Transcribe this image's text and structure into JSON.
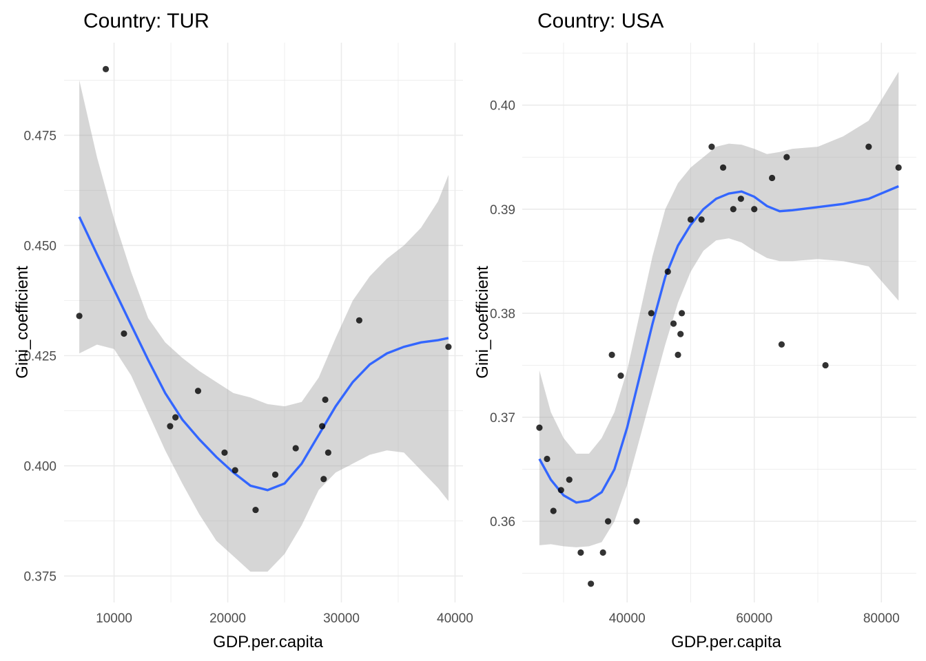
{
  "chart_data": [
    {
      "type": "scatter",
      "title": "Country: TUR",
      "xlabel": "GDP.per.capita",
      "ylabel": "Gini_coefficient",
      "xlim": [
        5600,
        40700
      ],
      "ylim": [
        0.369,
        0.496
      ],
      "xticks": [
        10000,
        20000,
        30000,
        40000
      ],
      "xtick_labels": [
        "10000",
        "20000",
        "30000",
        "40000"
      ],
      "yticks": [
        0.375,
        0.4,
        0.425,
        0.45,
        0.475
      ],
      "ytick_labels": [
        "0.375",
        "0.400",
        "0.425",
        "0.450",
        "0.475"
      ],
      "grid": true,
      "legend": "none",
      "points": [
        {
          "x": 6940,
          "y": 0.434
        },
        {
          "x": 9270,
          "y": 0.49
        },
        {
          "x": 10870,
          "y": 0.43
        },
        {
          "x": 14930,
          "y": 0.409
        },
        {
          "x": 15400,
          "y": 0.411
        },
        {
          "x": 17390,
          "y": 0.417
        },
        {
          "x": 19720,
          "y": 0.403
        },
        {
          "x": 20650,
          "y": 0.399
        },
        {
          "x": 22450,
          "y": 0.39
        },
        {
          "x": 24180,
          "y": 0.398
        },
        {
          "x": 25980,
          "y": 0.404
        },
        {
          "x": 28310,
          "y": 0.409
        },
        {
          "x": 28580,
          "y": 0.415
        },
        {
          "x": 28440,
          "y": 0.397
        },
        {
          "x": 28840,
          "y": 0.403
        },
        {
          "x": 31570,
          "y": 0.433
        },
        {
          "x": 39420,
          "y": 0.427
        }
      ],
      "smooth": {
        "method": "loess",
        "color": "#3366ff",
        "x": [
          6940,
          8500,
          10000,
          11500,
          13000,
          14500,
          16000,
          17500,
          19000,
          20500,
          22000,
          23500,
          25000,
          26500,
          28000,
          29500,
          31000,
          32500,
          34000,
          35500,
          37000,
          38500,
          39420
        ],
        "y": [
          0.4565,
          0.448,
          0.44,
          0.432,
          0.424,
          0.4165,
          0.4105,
          0.406,
          0.402,
          0.3985,
          0.3955,
          0.3945,
          0.396,
          0.4005,
          0.407,
          0.4135,
          0.419,
          0.423,
          0.4255,
          0.427,
          0.428,
          0.4285,
          0.429
        ],
        "lower": [
          0.4255,
          0.4275,
          0.4265,
          0.4205,
          0.412,
          0.4035,
          0.396,
          0.389,
          0.383,
          0.3795,
          0.376,
          0.376,
          0.38,
          0.3865,
          0.3945,
          0.3985,
          0.4005,
          0.4025,
          0.4035,
          0.403,
          0.399,
          0.395,
          0.392
        ],
        "upper": [
          0.4875,
          0.47,
          0.456,
          0.444,
          0.4335,
          0.428,
          0.4245,
          0.4215,
          0.419,
          0.4165,
          0.4155,
          0.414,
          0.4135,
          0.4145,
          0.42,
          0.429,
          0.4375,
          0.443,
          0.447,
          0.45,
          0.454,
          0.46,
          0.466
        ]
      }
    },
    {
      "type": "scatter",
      "title": "Country: USA",
      "xlabel": "GDP.per.capita",
      "ylabel": "Gini_coefficient",
      "xlim": [
        23500,
        85500
      ],
      "ylim": [
        0.3522,
        0.406
      ],
      "xticks": [
        40000,
        60000,
        80000
      ],
      "xtick_labels": [
        "40000",
        "60000",
        "80000"
      ],
      "yticks": [
        0.36,
        0.37,
        0.38,
        0.39,
        0.4
      ],
      "ytick_labels": [
        "0.36",
        "0.37",
        "0.38",
        "0.39",
        "0.40"
      ],
      "grid": true,
      "legend": "none",
      "points": [
        {
          "x": 26200,
          "y": 0.369
        },
        {
          "x": 27400,
          "y": 0.366
        },
        {
          "x": 28400,
          "y": 0.361
        },
        {
          "x": 29600,
          "y": 0.363
        },
        {
          "x": 30900,
          "y": 0.364
        },
        {
          "x": 32700,
          "y": 0.357
        },
        {
          "x": 34300,
          "y": 0.354
        },
        {
          "x": 36200,
          "y": 0.357
        },
        {
          "x": 37000,
          "y": 0.36
        },
        {
          "x": 37600,
          "y": 0.376
        },
        {
          "x": 39000,
          "y": 0.374
        },
        {
          "x": 41500,
          "y": 0.36
        },
        {
          "x": 43800,
          "y": 0.38
        },
        {
          "x": 46400,
          "y": 0.384
        },
        {
          "x": 47300,
          "y": 0.379
        },
        {
          "x": 48000,
          "y": 0.376
        },
        {
          "x": 48400,
          "y": 0.378
        },
        {
          "x": 48600,
          "y": 0.38
        },
        {
          "x": 50000,
          "y": 0.389
        },
        {
          "x": 51700,
          "y": 0.389
        },
        {
          "x": 53300,
          "y": 0.396
        },
        {
          "x": 55100,
          "y": 0.394
        },
        {
          "x": 56700,
          "y": 0.39
        },
        {
          "x": 57900,
          "y": 0.391
        },
        {
          "x": 60000,
          "y": 0.39
        },
        {
          "x": 62800,
          "y": 0.393
        },
        {
          "x": 64300,
          "y": 0.377
        },
        {
          "x": 65100,
          "y": 0.395
        },
        {
          "x": 71200,
          "y": 0.375
        },
        {
          "x": 78000,
          "y": 0.396
        },
        {
          "x": 82700,
          "y": 0.394
        }
      ],
      "smooth": {
        "method": "loess",
        "color": "#3366ff",
        "x": [
          26200,
          28000,
          30000,
          32000,
          34000,
          36000,
          38000,
          40000,
          42000,
          44000,
          46000,
          48000,
          50000,
          52000,
          54000,
          56000,
          58000,
          60000,
          62000,
          64000,
          66000,
          70000,
          74000,
          78000,
          82700
        ],
        "y": [
          0.366,
          0.364,
          0.3625,
          0.3618,
          0.362,
          0.3628,
          0.365,
          0.369,
          0.374,
          0.379,
          0.3835,
          0.3865,
          0.3885,
          0.39,
          0.391,
          0.3915,
          0.3917,
          0.3912,
          0.3903,
          0.3898,
          0.3899,
          0.3902,
          0.3905,
          0.391,
          0.3922
        ],
        "lower": [
          0.3577,
          0.3578,
          0.3576,
          0.3575,
          0.3576,
          0.358,
          0.36,
          0.3635,
          0.368,
          0.3725,
          0.377,
          0.381,
          0.384,
          0.386,
          0.387,
          0.3872,
          0.3868,
          0.386,
          0.3853,
          0.385,
          0.385,
          0.3852,
          0.385,
          0.3845,
          0.3812
        ],
        "upper": [
          0.3745,
          0.3705,
          0.368,
          0.3665,
          0.3665,
          0.368,
          0.3705,
          0.3745,
          0.38,
          0.3855,
          0.39,
          0.3925,
          0.394,
          0.395,
          0.396,
          0.3963,
          0.3962,
          0.3958,
          0.3953,
          0.3955,
          0.3958,
          0.396,
          0.397,
          0.3985,
          0.4032
        ]
      }
    }
  ]
}
